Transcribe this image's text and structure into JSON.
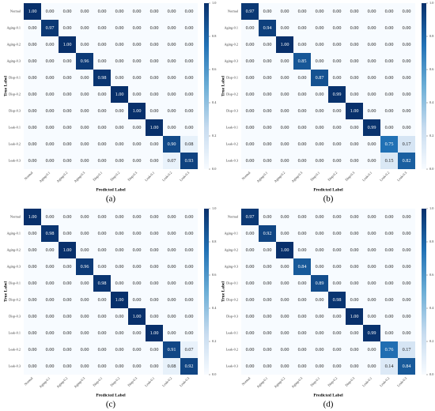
{
  "chart_data": [
    {
      "type": "heatmap",
      "caption": "(a)",
      "xlabel": "Predicted Label",
      "ylabel": "True Label",
      "x_categories": [
        "Normal",
        "Aging-0.1",
        "Aging-0.2",
        "Aging-0.3",
        "Disp-0.1",
        "Disp-0.2",
        "Disp-0.3",
        "Leak-0.1",
        "Leak-0.2",
        "Leak-0.3"
      ],
      "y_categories": [
        "Normal",
        "Aging-0.1",
        "Aging-0.2",
        "Aging-0.3",
        "Disp-0.1",
        "Disp-0.2",
        "Disp-0.3",
        "Leak-0.1",
        "Leak-0.2",
        "Leak-0.3"
      ],
      "values": [
        [
          1,
          0,
          0,
          0,
          0,
          0,
          0,
          0,
          0,
          0
        ],
        [
          0,
          0.97,
          0,
          0,
          0,
          0,
          0,
          0,
          0,
          0
        ],
        [
          0,
          0,
          1,
          0,
          0,
          0,
          0,
          0,
          0,
          0
        ],
        [
          0,
          0,
          0,
          0.96,
          0,
          0,
          0,
          0,
          0,
          0
        ],
        [
          0,
          0,
          0,
          0,
          0.98,
          0,
          0,
          0,
          0,
          0
        ],
        [
          0,
          0,
          0,
          0,
          0,
          1,
          0,
          0,
          0,
          0
        ],
        [
          0,
          0,
          0,
          0,
          0,
          0,
          1,
          0,
          0,
          0
        ],
        [
          0,
          0,
          0,
          0,
          0,
          0,
          0,
          1,
          0,
          0
        ],
        [
          0,
          0,
          0,
          0,
          0,
          0,
          0,
          0,
          0.9,
          0.08
        ],
        [
          0,
          0,
          0,
          0,
          0,
          0,
          0,
          0,
          0.07,
          0.93
        ]
      ],
      "value_labels": [
        [
          "1.00",
          "0.00",
          "0.00",
          "0.00",
          "0.00",
          "0.00",
          "0.00",
          "0.00",
          "0.00",
          "0.00"
        ],
        [
          "0.00",
          "0.97",
          "0.00",
          "0.00",
          "0.00",
          "0.00",
          "0.00",
          "0.00",
          "0.00",
          "0.00"
        ],
        [
          "0.00",
          "0.00",
          "1.00",
          "0.00",
          "0.00",
          "0.00",
          "0.00",
          "0.00",
          "0.00",
          "0.00"
        ],
        [
          "0.00",
          "0.00",
          "0.00",
          "0.96",
          "0.00",
          "0.00",
          "0.00",
          "0.00",
          "0.00",
          "0.00"
        ],
        [
          "0.00",
          "0.00",
          "0.00",
          "0.00",
          "0.98",
          "0.00",
          "0.00",
          "0.00",
          "0.00",
          "0.00"
        ],
        [
          "0.00",
          "0.00",
          "0.00",
          "0.00",
          "0.00",
          "1.00",
          "0.00",
          "0.00",
          "0.00",
          "0.00"
        ],
        [
          "0.00",
          "0.00",
          "0.00",
          "0.00",
          "0.00",
          "0.00",
          "1.00",
          "0.00",
          "0.00",
          "0.00"
        ],
        [
          "0.00",
          "0.00",
          "0.00",
          "0.00",
          "0.00",
          "0.00",
          "0.00",
          "1.00",
          "0.00",
          "0.00"
        ],
        [
          "0.00",
          "0.00",
          "0.00",
          "0.00",
          "0.00",
          "0.00",
          "0.00",
          "0.00",
          "0.90",
          "0.08"
        ],
        [
          "0.00",
          "0.00",
          "0.00",
          "0.00",
          "0.00",
          "0.00",
          "0.00",
          "0.00",
          "0.07",
          "0.93"
        ]
      ],
      "zlim": [
        0,
        1
      ],
      "zticks": [
        {
          "value": 0,
          "label": "0.0"
        },
        0.2,
        0.4,
        0.6,
        0.8,
        {
          "value": 1,
          "label": "1.0"
        }
      ],
      "colors": [
        "#f7fbff",
        "#c6dbef",
        "#6baed6",
        "#2171b5",
        "#08306b"
      ]
    },
    {
      "type": "heatmap",
      "caption": "(b)",
      "xlabel": "Predicted Label",
      "ylabel": "True Label",
      "x_categories": [
        "Normal",
        "Aging-0.1",
        "Aging-0.2",
        "Aging-0.3",
        "Disp-0.1",
        "Disp-0.2",
        "Disp-0.3",
        "Leak-0.1",
        "Leak-0.2",
        "Leak-0.3"
      ],
      "y_categories": [
        "Normal",
        "Aging-0.1",
        "Aging-0.2",
        "Aging-0.3",
        "Disp-0.1",
        "Disp-0.2",
        "Disp-0.3",
        "Leak-0.1",
        "Leak-0.2",
        "Leak-0.3"
      ],
      "values": [
        [
          0.97,
          0,
          0,
          0,
          0,
          0,
          0,
          0,
          0,
          0
        ],
        [
          0,
          0.94,
          0,
          0,
          0,
          0,
          0,
          0,
          0,
          0
        ],
        [
          0,
          0,
          1,
          0,
          0,
          0,
          0,
          0,
          0,
          0
        ],
        [
          0,
          0,
          0,
          0.85,
          0,
          0,
          0,
          0,
          0,
          0
        ],
        [
          0,
          0,
          0,
          0,
          0.87,
          0,
          0,
          0,
          0,
          0
        ],
        [
          0,
          0,
          0,
          0,
          0,
          0.99,
          0,
          0,
          0,
          0
        ],
        [
          0,
          0,
          0,
          0,
          0,
          0,
          1,
          0,
          0,
          0
        ],
        [
          0,
          0,
          0,
          0,
          0,
          0,
          0,
          0.99,
          0,
          0
        ],
        [
          0,
          0,
          0,
          0,
          0,
          0,
          0,
          0,
          0.75,
          0.17
        ],
        [
          0,
          0,
          0,
          0,
          0,
          0,
          0,
          0,
          0.15,
          0.82
        ]
      ],
      "value_labels": [
        [
          "0.97",
          "0.00",
          "0.00",
          "0.00",
          "0.00",
          "0.00",
          "0.00",
          "0.00",
          "0.00",
          "0.00"
        ],
        [
          "0.00",
          "0.94",
          "0.00",
          "0.00",
          "0.00",
          "0.00",
          "0.00",
          "0.00",
          "0.00",
          "0.00"
        ],
        [
          "0.00",
          "0.00",
          "1.00",
          "0.00",
          "0.00",
          "0.00",
          "0.00",
          "0.00",
          "0.00",
          "0.00"
        ],
        [
          "0.00",
          "0.00",
          "0.00",
          "0.85",
          "0.00",
          "0.00",
          "0.00",
          "0.00",
          "0.00",
          "0.00"
        ],
        [
          "0.00",
          "0.00",
          "0.00",
          "0.00",
          "0.87",
          "0.00",
          "0.00",
          "0.00",
          "0.00",
          "0.00"
        ],
        [
          "0.00",
          "0.00",
          "0.00",
          "0.00",
          "0.00",
          "0.99",
          "0.00",
          "0.00",
          "0.00",
          "0.00"
        ],
        [
          "0.00",
          "0.00",
          "0.00",
          "0.00",
          "0.00",
          "0.00",
          "1.00",
          "0.00",
          "0.00",
          "0.00"
        ],
        [
          "0.00",
          "0.00",
          "0.00",
          "0.00",
          "0.00",
          "0.00",
          "0.00",
          "0.99",
          "0.00",
          "0.00"
        ],
        [
          "0.00",
          "0.00",
          "0.00",
          "0.00",
          "0.00",
          "0.00",
          "0.00",
          "0.00",
          "0.75",
          "0.17"
        ],
        [
          "0.00",
          "0.00",
          "0.00",
          "0.00",
          "0.00",
          "0.00",
          "0.00",
          "0.00",
          "0.15",
          "0.82"
        ]
      ],
      "zlim": [
        0,
        1
      ],
      "zticks": [
        {
          "value": 0,
          "label": "0.0"
        },
        0.2,
        0.4,
        0.6,
        0.8,
        {
          "value": 1,
          "label": "1.0"
        }
      ],
      "colors": [
        "#f7fbff",
        "#c6dbef",
        "#6baed6",
        "#2171b5",
        "#08306b"
      ]
    },
    {
      "type": "heatmap",
      "caption": "(c)",
      "xlabel": "Predicted Label",
      "ylabel": "True Label",
      "x_categories": [
        "Normal",
        "Aging-0.1",
        "Aging-0.2",
        "Aging-0.3",
        "Disp-0.1",
        "Disp-0.2",
        "Disp-0.3",
        "Leak-0.1",
        "Leak-0.2",
        "Leak-0.3"
      ],
      "y_categories": [
        "Normal",
        "Aging-0.1",
        "Aging-0.2",
        "Aging-0.3",
        "Disp-0.1",
        "Disp-0.2",
        "Disp-0.3",
        "Leak-0.1",
        "Leak-0.2",
        "Leak-0.3"
      ],
      "values": [
        [
          1,
          0,
          0,
          0,
          0,
          0,
          0,
          0,
          0,
          0
        ],
        [
          0,
          0.98,
          0,
          0,
          0,
          0,
          0,
          0,
          0,
          0
        ],
        [
          0,
          0,
          1,
          0,
          0,
          0,
          0,
          0,
          0,
          0
        ],
        [
          0,
          0,
          0,
          0.96,
          0,
          0,
          0,
          0,
          0,
          0
        ],
        [
          0,
          0,
          0,
          0,
          0.98,
          0,
          0,
          0,
          0,
          0
        ],
        [
          0,
          0,
          0,
          0,
          0,
          1,
          0,
          0,
          0,
          0
        ],
        [
          0,
          0,
          0,
          0,
          0,
          0,
          1,
          0,
          0,
          0
        ],
        [
          0,
          0,
          0,
          0,
          0,
          0,
          0,
          1,
          0,
          0
        ],
        [
          0,
          0,
          0,
          0,
          0,
          0,
          0,
          0,
          0.91,
          0.07
        ],
        [
          0,
          0,
          0,
          0,
          0,
          0,
          0,
          0,
          0.08,
          0.92
        ]
      ],
      "value_labels": [
        [
          "1.00",
          "0.00",
          "0.00",
          "0.00",
          "0.00",
          "0.00",
          "0.00",
          "0.00",
          "0.00",
          "0.00"
        ],
        [
          "0.00",
          "0.98",
          "0.00",
          "0.00",
          "0.00",
          "0.00",
          "0.00",
          "0.00",
          "0.00",
          "0.00"
        ],
        [
          "0.00",
          "0.00",
          "1.00",
          "0.00",
          "0.00",
          "0.00",
          "0.00",
          "0.00",
          "0.00",
          "0.00"
        ],
        [
          "0.00",
          "0.00",
          "0.00",
          "0.96",
          "0.00",
          "0.00",
          "0.00",
          "0.00",
          "0.00",
          "0.00"
        ],
        [
          "0.00",
          "0.00",
          "0.00",
          "0.00",
          "0.98",
          "0.00",
          "0.00",
          "0.00",
          "0.00",
          "0.00"
        ],
        [
          "0.00",
          "0.00",
          "0.00",
          "0.00",
          "0.00",
          "1.00",
          "0.00",
          "0.00",
          "0.00",
          "0.00"
        ],
        [
          "0.00",
          "0.00",
          "0.00",
          "0.00",
          "0.00",
          "0.00",
          "1.00",
          "0.00",
          "0.00",
          "0.00"
        ],
        [
          "0.00",
          "0.00",
          "0.00",
          "0.00",
          "0.00",
          "0.00",
          "0.00",
          "1.00",
          "0.00",
          "0.00"
        ],
        [
          "0.00",
          "0.00",
          "0.00",
          "0.00",
          "0.00",
          "0.00",
          "0.00",
          "0.00",
          "0.91",
          "0.07"
        ],
        [
          "0.00",
          "0.00",
          "0.00",
          "0.00",
          "0.00",
          "0.00",
          "0.00",
          "0.00",
          "0.08",
          "0.92"
        ]
      ],
      "zlim": [
        0,
        1
      ],
      "zticks": [
        {
          "value": 0,
          "label": "0.0"
        },
        0.2,
        0.4,
        0.6,
        0.8,
        {
          "value": 1,
          "label": "1.0"
        }
      ],
      "colors": [
        "#f7fbff",
        "#c6dbef",
        "#6baed6",
        "#2171b5",
        "#08306b"
      ]
    },
    {
      "type": "heatmap",
      "caption": "(d)",
      "xlabel": "Predicted Label",
      "ylabel": "True Label",
      "x_categories": [
        "Normal",
        "Aging-0.1",
        "Aging-0.2",
        "Aging-0.3",
        "Disp-0.1",
        "Disp-0.2",
        "Disp-0.3",
        "Leak-0.1",
        "Leak-0.2",
        "Leak-0.3"
      ],
      "y_categories": [
        "Normal",
        "Aging-0.1",
        "Aging-0.2",
        "Aging-0.3",
        "Disp-0.1",
        "Disp-0.2",
        "Disp-0.3",
        "Leak-0.1",
        "Leak-0.2",
        "Leak-0.3"
      ],
      "values": [
        [
          0.97,
          0,
          0,
          0,
          0,
          0,
          0,
          0,
          0,
          0
        ],
        [
          0,
          0.92,
          0,
          0,
          0,
          0,
          0,
          0,
          0,
          0
        ],
        [
          0,
          0,
          1,
          0,
          0,
          0,
          0,
          0,
          0,
          0
        ],
        [
          0,
          0,
          0,
          0.84,
          0,
          0,
          0,
          0,
          0,
          0
        ],
        [
          0,
          0,
          0,
          0,
          0.89,
          0,
          0,
          0,
          0,
          0
        ],
        [
          0,
          0,
          0,
          0,
          0,
          0.98,
          0,
          0,
          0,
          0
        ],
        [
          0,
          0,
          0,
          0,
          0,
          0,
          1,
          0,
          0,
          0
        ],
        [
          0,
          0,
          0,
          0,
          0,
          0,
          0,
          0.99,
          0,
          0
        ],
        [
          0,
          0,
          0,
          0,
          0,
          0,
          0,
          0,
          0.76,
          0.17
        ],
        [
          0,
          0,
          0,
          0,
          0,
          0,
          0,
          0,
          0.14,
          0.84
        ]
      ],
      "value_labels": [
        [
          "0.97",
          "0.00",
          "0.00",
          "0.00",
          "0.00",
          "0.00",
          "0.00",
          "0.00",
          "0.00",
          "0.00"
        ],
        [
          "0.00",
          "0.92",
          "0.00",
          "0.00",
          "0.00",
          "0.00",
          "0.00",
          "0.00",
          "0.00",
          "0.00"
        ],
        [
          "0.00",
          "0.00",
          "1.00",
          "0.00",
          "0.00",
          "0.00",
          "0.00",
          "0.00",
          "0.00",
          "0.00"
        ],
        [
          "0.00",
          "0.00",
          "0.00",
          "0.84",
          "0.00",
          "0.00",
          "0.00",
          "0.00",
          "0.00",
          "0.00"
        ],
        [
          "0.00",
          "0.00",
          "0.00",
          "0.00",
          "0.89",
          "0.00",
          "0.00",
          "0.00",
          "0.00",
          "0.00"
        ],
        [
          "0.00",
          "0.00",
          "0.00",
          "0.00",
          "0.00",
          "0.98",
          "0.00",
          "0.00",
          "0.00",
          "0.00"
        ],
        [
          "0.00",
          "0.00",
          "0.00",
          "0.00",
          "0.00",
          "0.00",
          "1.00",
          "0.00",
          "0.00",
          "0.00"
        ],
        [
          "0.00",
          "0.00",
          "0.00",
          "0.00",
          "0.00",
          "0.00",
          "0.00",
          "0.99",
          "0.00",
          "0.00"
        ],
        [
          "0.00",
          "0.00",
          "0.00",
          "0.00",
          "0.00",
          "0.00",
          "0.00",
          "0.00",
          "0.76",
          "0.17"
        ],
        [
          "0.00",
          "0.00",
          "0.00",
          "0.00",
          "0.00",
          "0.00",
          "0.00",
          "0.00",
          "0.14",
          "0.84"
        ]
      ],
      "zlim": [
        0,
        1
      ],
      "zticks": [
        {
          "value": 0,
          "label": "0.0"
        },
        0.2,
        0.4,
        0.6,
        0.8,
        {
          "value": 1,
          "label": "1.0"
        }
      ],
      "colors": [
        "#f7fbff",
        "#c6dbef",
        "#6baed6",
        "#2171b5",
        "#08306b"
      ]
    }
  ]
}
